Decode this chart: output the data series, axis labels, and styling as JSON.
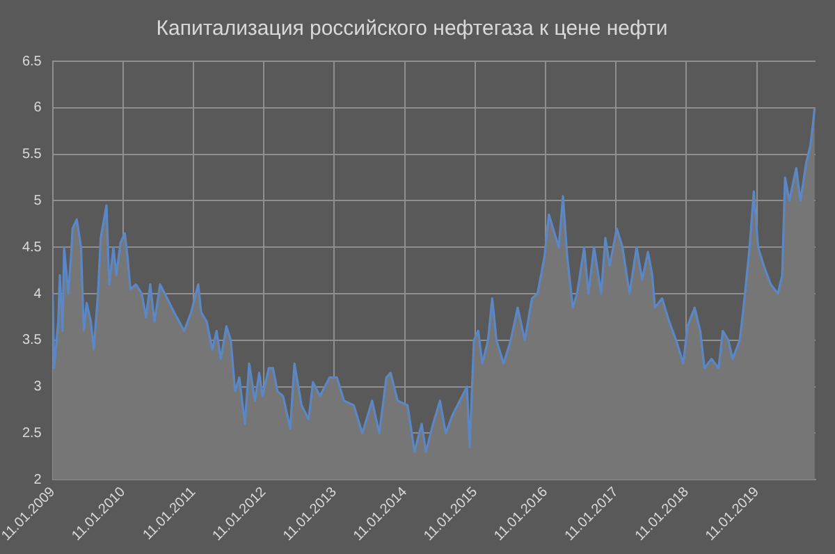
{
  "chart_data": {
    "type": "area",
    "title": "Капитализация российского нефтегаза к цене нефти",
    "x": [
      "2009-01-11",
      "2009-01-18",
      "2009-02-09",
      "2009-02-17",
      "2009-03-03",
      "2009-03-11",
      "2009-04-02",
      "2009-04-16",
      "2009-04-24",
      "2009-05-16",
      "2009-06-07",
      "2009-06-21",
      "2009-07-06",
      "2009-07-28",
      "2009-08-12",
      "2009-09-03",
      "2009-09-17",
      "2009-10-17",
      "2009-10-31",
      "2009-11-22",
      "2009-12-07",
      "2009-12-29",
      "2010-01-20",
      "2010-02-03",
      "2010-02-18",
      "2010-03-19",
      "2010-04-18",
      "2010-05-10",
      "2010-06-01",
      "2010-06-23",
      "2010-07-22",
      "2010-08-28",
      "2010-10-03",
      "2010-11-24",
      "2010-12-30",
      "2011-02-05",
      "2011-02-20",
      "2011-03-21",
      "2011-04-19",
      "2011-05-11",
      "2011-06-02",
      "2011-07-01",
      "2011-07-24",
      "2011-08-15",
      "2011-09-06",
      "2011-10-05",
      "2011-10-27",
      "2011-11-26",
      "2011-12-18",
      "2012-01-05",
      "2012-02-06",
      "2012-02-28",
      "2012-03-22",
      "2012-04-20",
      "2012-05-27",
      "2012-06-18",
      "2012-07-25",
      "2012-08-31",
      "2012-09-22",
      "2012-10-28",
      "2012-12-18",
      "2013-01-24",
      "2013-03-02",
      "2013-04-22",
      "2013-06-05",
      "2013-07-26",
      "2013-09-01",
      "2013-10-08",
      "2013-10-30",
      "2013-12-05",
      "2014-01-26",
      "2014-03-03",
      "2014-04-09",
      "2014-05-01",
      "2014-06-07",
      "2014-07-13",
      "2014-08-12",
      "2014-09-17",
      "2014-10-24",
      "2014-11-30",
      "2014-12-14",
      "2015-01-05",
      "2015-01-27",
      "2015-02-18",
      "2015-03-19",
      "2015-04-10",
      "2015-05-02",
      "2015-06-08",
      "2015-07-15",
      "2015-08-20",
      "2015-09-26",
      "2015-11-02",
      "2015-12-01",
      "2016-01-06",
      "2016-01-29",
      "2016-02-20",
      "2016-03-20",
      "2016-04-11",
      "2016-05-03",
      "2016-06-01",
      "2016-06-23",
      "2016-07-30",
      "2016-08-21",
      "2016-09-19",
      "2016-10-26",
      "2016-11-17",
      "2016-12-09",
      "2017-01-15",
      "2017-02-14",
      "2017-03-22",
      "2017-04-28",
      "2017-05-27",
      "2017-06-26",
      "2017-07-18",
      "2017-08-01",
      "2017-09-07",
      "2017-10-14",
      "2017-11-19",
      "2017-12-26",
      "2018-01-17",
      "2018-02-23",
      "2018-03-24",
      "2018-04-15",
      "2018-05-21",
      "2018-06-27",
      "2018-07-19",
      "2018-08-17",
      "2018-09-08",
      "2018-10-15",
      "2018-11-06",
      "2018-12-05",
      "2018-12-27",
      "2019-01-18",
      "2019-02-17",
      "2019-03-25",
      "2019-05-01",
      "2019-05-23",
      "2019-06-07",
      "2019-06-29",
      "2019-08-04",
      "2019-08-26",
      "2019-09-24",
      "2019-10-17",
      "2019-11-08"
    ],
    "series": [
      {
        "color": "#5b87c5",
        "values": [
          4.0,
          3.2,
          3.7,
          4.2,
          3.6,
          4.5,
          4.0,
          4.4,
          4.7,
          4.8,
          4.5,
          3.6,
          3.9,
          3.7,
          3.4,
          4.0,
          4.6,
          4.95,
          4.1,
          4.5,
          4.2,
          4.55,
          4.65,
          4.4,
          4.05,
          4.1,
          4.0,
          3.75,
          4.1,
          3.7,
          4.1,
          3.95,
          3.8,
          3.6,
          3.8,
          4.1,
          3.8,
          3.7,
          3.4,
          3.6,
          3.3,
          3.65,
          3.5,
          2.95,
          3.1,
          2.6,
          3.25,
          2.85,
          3.15,
          2.9,
          3.2,
          3.2,
          2.95,
          2.9,
          2.55,
          3.25,
          2.8,
          2.65,
          3.05,
          2.9,
          3.1,
          3.1,
          2.85,
          2.8,
          2.5,
          2.85,
          2.5,
          3.1,
          3.15,
          2.85,
          2.8,
          2.3,
          2.6,
          2.3,
          2.6,
          2.85,
          2.5,
          2.7,
          2.85,
          3.0,
          2.35,
          3.5,
          3.6,
          3.25,
          3.5,
          3.95,
          3.5,
          3.25,
          3.5,
          3.85,
          3.5,
          3.95,
          4.0,
          4.4,
          4.85,
          4.7,
          4.5,
          5.05,
          4.4,
          3.85,
          4.0,
          4.5,
          4.0,
          4.5,
          4.0,
          4.6,
          4.3,
          4.7,
          4.5,
          4.0,
          4.5,
          4.15,
          4.45,
          4.2,
          3.85,
          3.95,
          3.7,
          3.5,
          3.25,
          3.65,
          3.85,
          3.6,
          3.2,
          3.3,
          3.2,
          3.6,
          3.5,
          3.3,
          3.5,
          3.9,
          4.5,
          5.1,
          4.5,
          4.3,
          4.1,
          4.0,
          4.2,
          5.25,
          5.0,
          5.35,
          5.0,
          5.4,
          5.6,
          6.0
        ]
      }
    ],
    "xlim": [
      "2009-01-11",
      "2019-11-12"
    ],
    "xticks": [
      {
        "value": "2009-01-11",
        "label": "11.01.2009"
      },
      {
        "value": "2010-01-11",
        "label": "11.01.2010"
      },
      {
        "value": "2011-01-11",
        "label": "11.01.2011"
      },
      {
        "value": "2012-01-11",
        "label": "11.01.2012"
      },
      {
        "value": "2013-01-11",
        "label": "11.01.2013"
      },
      {
        "value": "2014-01-11",
        "label": "11.01.2014"
      },
      {
        "value": "2015-01-11",
        "label": "11.01.2015"
      },
      {
        "value": "2016-01-11",
        "label": "11.01.2016"
      },
      {
        "value": "2017-01-11",
        "label": "11.01.2017"
      },
      {
        "value": "2018-01-11",
        "label": "11.01.2018"
      },
      {
        "value": "2019-01-11",
        "label": "11.01.2019"
      }
    ],
    "ylim": [
      2,
      6.5
    ],
    "yticks": [
      2,
      2.5,
      3,
      3.5,
      4,
      4.5,
      5,
      5.5,
      6,
      6.5
    ],
    "grid": true,
    "legend": false
  }
}
